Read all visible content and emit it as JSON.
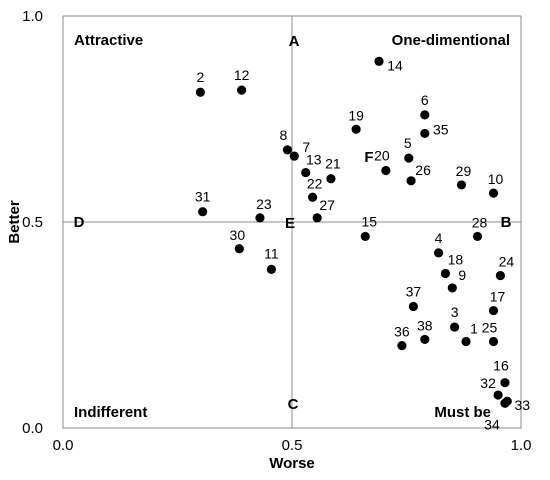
{
  "chart_data": {
    "type": "scatter",
    "xlabel": "Worse",
    "ylabel": "Better",
    "xlim": [
      0,
      1
    ],
    "ylim": [
      0,
      1
    ],
    "x_ticks": [
      "0.0",
      "0.5",
      "1.0"
    ],
    "y_ticks": [
      "0.0",
      "0.5",
      "1.0"
    ],
    "grid": false,
    "reference_lines": {
      "x": 0.5,
      "y": 0.5
    },
    "quadrant_labels": {
      "top_left": "Attractive",
      "top_right": "One-dimentional",
      "bottom_left": "Indifferent",
      "bottom_right": "Must be"
    },
    "region_labels": [
      "A",
      "B",
      "C",
      "D",
      "E",
      "F"
    ],
    "point_color": "#000000",
    "points": [
      {
        "label": "1",
        "x": 0.88,
        "y": 0.21
      },
      {
        "label": "2",
        "x": 0.3,
        "y": 0.815
      },
      {
        "label": "3",
        "x": 0.855,
        "y": 0.245
      },
      {
        "label": "4",
        "x": 0.82,
        "y": 0.425
      },
      {
        "label": "5",
        "x": 0.755,
        "y": 0.655
      },
      {
        "label": "6",
        "x": 0.79,
        "y": 0.76
      },
      {
        "label": "7",
        "x": 0.505,
        "y": 0.66
      },
      {
        "label": "8",
        "x": 0.49,
        "y": 0.675
      },
      {
        "label": "9",
        "x": 0.85,
        "y": 0.34
      },
      {
        "label": "10",
        "x": 0.94,
        "y": 0.57
      },
      {
        "label": "11",
        "x": 0.455,
        "y": 0.385
      },
      {
        "label": "12",
        "x": 0.39,
        "y": 0.82
      },
      {
        "label": "13",
        "x": 0.53,
        "y": 0.62
      },
      {
        "label": "14",
        "x": 0.69,
        "y": 0.89
      },
      {
        "label": "15",
        "x": 0.66,
        "y": 0.465
      },
      {
        "label": "16",
        "x": 0.965,
        "y": 0.11
      },
      {
        "label": "17",
        "x": 0.94,
        "y": 0.285
      },
      {
        "label": "18",
        "x": 0.835,
        "y": 0.375
      },
      {
        "label": "19",
        "x": 0.64,
        "y": 0.725
      },
      {
        "label": "20",
        "x": 0.705,
        "y": 0.625
      },
      {
        "label": "21",
        "x": 0.585,
        "y": 0.605
      },
      {
        "label": "22",
        "x": 0.545,
        "y": 0.56
      },
      {
        "label": "23",
        "x": 0.43,
        "y": 0.51
      },
      {
        "label": "24",
        "x": 0.955,
        "y": 0.37
      },
      {
        "label": "25",
        "x": 0.94,
        "y": 0.21
      },
      {
        "label": "26",
        "x": 0.76,
        "y": 0.6
      },
      {
        "label": "27",
        "x": 0.555,
        "y": 0.51
      },
      {
        "label": "28",
        "x": 0.905,
        "y": 0.465
      },
      {
        "label": "29",
        "x": 0.87,
        "y": 0.59
      },
      {
        "label": "30",
        "x": 0.385,
        "y": 0.435
      },
      {
        "label": "31",
        "x": 0.305,
        "y": 0.525
      },
      {
        "label": "32",
        "x": 0.95,
        "y": 0.08
      },
      {
        "label": "33",
        "x": 0.97,
        "y": 0.065
      },
      {
        "label": "34",
        "x": 0.965,
        "y": 0.06
      },
      {
        "label": "35",
        "x": 0.79,
        "y": 0.715
      },
      {
        "label": "36",
        "x": 0.74,
        "y": 0.2
      },
      {
        "label": "37",
        "x": 0.765,
        "y": 0.295
      },
      {
        "label": "38",
        "x": 0.79,
        "y": 0.215
      }
    ]
  }
}
